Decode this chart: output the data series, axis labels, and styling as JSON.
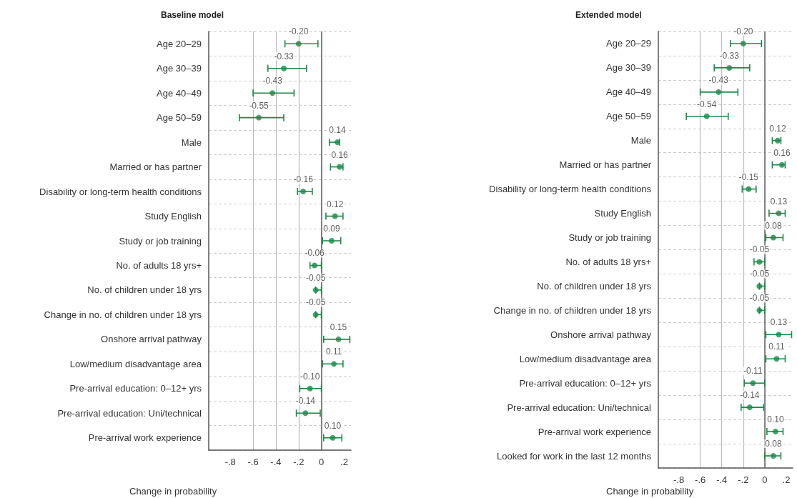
{
  "chart_data": [
    {
      "type": "scatter",
      "orientation": "horizontal",
      "title": "Baseline model",
      "xlabel": "Change in probability",
      "categories": [
        "Age 20–29",
        "Age 30–39",
        "Age 40–49",
        "Age 50–59",
        "Male",
        "Married or has partner",
        "Disability or long-term health conditions",
        "Study English",
        "Study or job training",
        "No. of adults 18 yrs+",
        "No. of children under 18 yrs",
        "Change in no. of children under 18 yrs",
        "Onshore arrival pathway",
        "Low/medium disadvantage area",
        "Pre-arrival education: 0–12+ yrs",
        "Pre-arrival education: Uni/technical",
        "Pre-arrival work experience"
      ],
      "series": [
        {
          "color": "#1a8a48",
          "values": [
            -0.2,
            -0.33,
            -0.43,
            -0.55,
            0.14,
            0.16,
            -0.16,
            0.12,
            0.09,
            -0.06,
            -0.05,
            -0.05,
            0.15,
            0.11,
            -0.1,
            -0.14,
            0.1
          ],
          "value_labels": [
            "-0.20",
            "-0.33",
            "-0.43",
            "-0.55",
            "0.14",
            "0.16",
            "-0.16",
            "0.12",
            "0.09",
            "-0.06",
            "-0.05",
            "-0.05",
            "0.15",
            "0.11",
            "-0.10",
            "-0.14",
            "0.10"
          ],
          "errors": [
            [
              -0.32,
              -0.03
            ],
            [
              -0.47,
              -0.13
            ],
            [
              -0.6,
              -0.24
            ],
            [
              -0.72,
              -0.33
            ],
            [
              0.07,
              0.16
            ],
            [
              0.08,
              0.19
            ],
            [
              -0.21,
              -0.08
            ],
            [
              0.04,
              0.19
            ],
            [
              0.01,
              0.17
            ],
            [
              -0.1,
              0
            ],
            [
              -0.05,
              0
            ],
            [
              -0.05,
              0
            ],
            [
              0.02,
              0.25
            ],
            [
              0.01,
              0.19
            ],
            [
              -0.19,
              0
            ],
            [
              -0.22,
              -0.01
            ],
            [
              0.02,
              0.18
            ]
          ]
        }
      ],
      "xlim": [
        -0.99,
        0.26
      ],
      "xticks": [
        {
          "value": -0.8,
          "label": "-.8"
        },
        {
          "value": -0.6,
          "label": "-.6"
        },
        {
          "value": -0.4,
          "label": "-.4"
        },
        {
          "value": -0.2,
          "label": "-.2"
        },
        {
          "value": 0,
          "label": "0"
        },
        {
          "value": 0.2,
          "label": ".2"
        }
      ],
      "ref_lines": [
        {
          "axis": "x",
          "value": 0,
          "color": "#666666"
        }
      ],
      "grid": true,
      "marker": "circle"
    },
    {
      "type": "scatter",
      "orientation": "horizontal",
      "title": "Extended model",
      "xlabel": "Change in probability",
      "categories": [
        "Age 20–29",
        "Age 30–39",
        "Age 40–49",
        "Age 50–59",
        "Male",
        "Married or has partner",
        "Disability or long-term health conditions",
        "Study English",
        "Study or job training",
        "No. of adults 18 yrs+",
        "No. of children under 18 yrs",
        "Change in no. of children under 18 yrs",
        "Onshore arrival pathway",
        "Low/medium disadvantage area",
        "Pre-arrival education: 0–12+ yrs",
        "Pre-arrival education: Uni/technical",
        "Pre-arrival work experience",
        "Looked for work in the last 12 months"
      ],
      "series": [
        {
          "color": "#1a8a48",
          "values": [
            -0.2,
            -0.33,
            -0.43,
            -0.54,
            0.12,
            0.16,
            -0.15,
            0.13,
            0.08,
            -0.05,
            -0.05,
            -0.05,
            0.13,
            0.11,
            -0.11,
            -0.14,
            0.1,
            0.08
          ],
          "value_labels": [
            "-0.20",
            "-0.33",
            "-0.43",
            "-0.54",
            "0.12",
            "0.16",
            "-0.15",
            "0.13",
            "0.08",
            "-0.05",
            "-0.05",
            "-0.05",
            "0.13",
            "0.11",
            "-0.11",
            "-0.14",
            "0.10",
            "0.08"
          ],
          "errors": [
            [
              -0.32,
              -0.03
            ],
            [
              -0.47,
              -0.14
            ],
            [
              -0.6,
              -0.25
            ],
            [
              -0.73,
              -0.34
            ],
            [
              0.07,
              0.15
            ],
            [
              0.07,
              0.19
            ],
            [
              -0.21,
              -0.08
            ],
            [
              0.04,
              0.19
            ],
            [
              0.01,
              0.17
            ],
            [
              -0.1,
              0
            ],
            [
              -0.05,
              0
            ],
            [
              -0.05,
              0
            ],
            [
              0.01,
              0.25
            ],
            [
              0.01,
              0.19
            ],
            [
              -0.19,
              0
            ],
            [
              -0.22,
              -0.01
            ],
            [
              0.02,
              0.17
            ],
            [
              0,
              0.15
            ]
          ]
        }
      ],
      "xlim": [
        -0.99,
        0.26
      ],
      "xticks": [
        {
          "value": -0.8,
          "label": "-.8"
        },
        {
          "value": -0.6,
          "label": "-.6"
        },
        {
          "value": -0.4,
          "label": "-.4"
        },
        {
          "value": -0.2,
          "label": "-.2"
        },
        {
          "value": 0,
          "label": "0"
        },
        {
          "value": 0.2,
          "label": ".2"
        }
      ],
      "ref_lines": [
        {
          "axis": "x",
          "value": 0,
          "color": "#666666"
        }
      ],
      "grid": true,
      "marker": "circle"
    }
  ]
}
